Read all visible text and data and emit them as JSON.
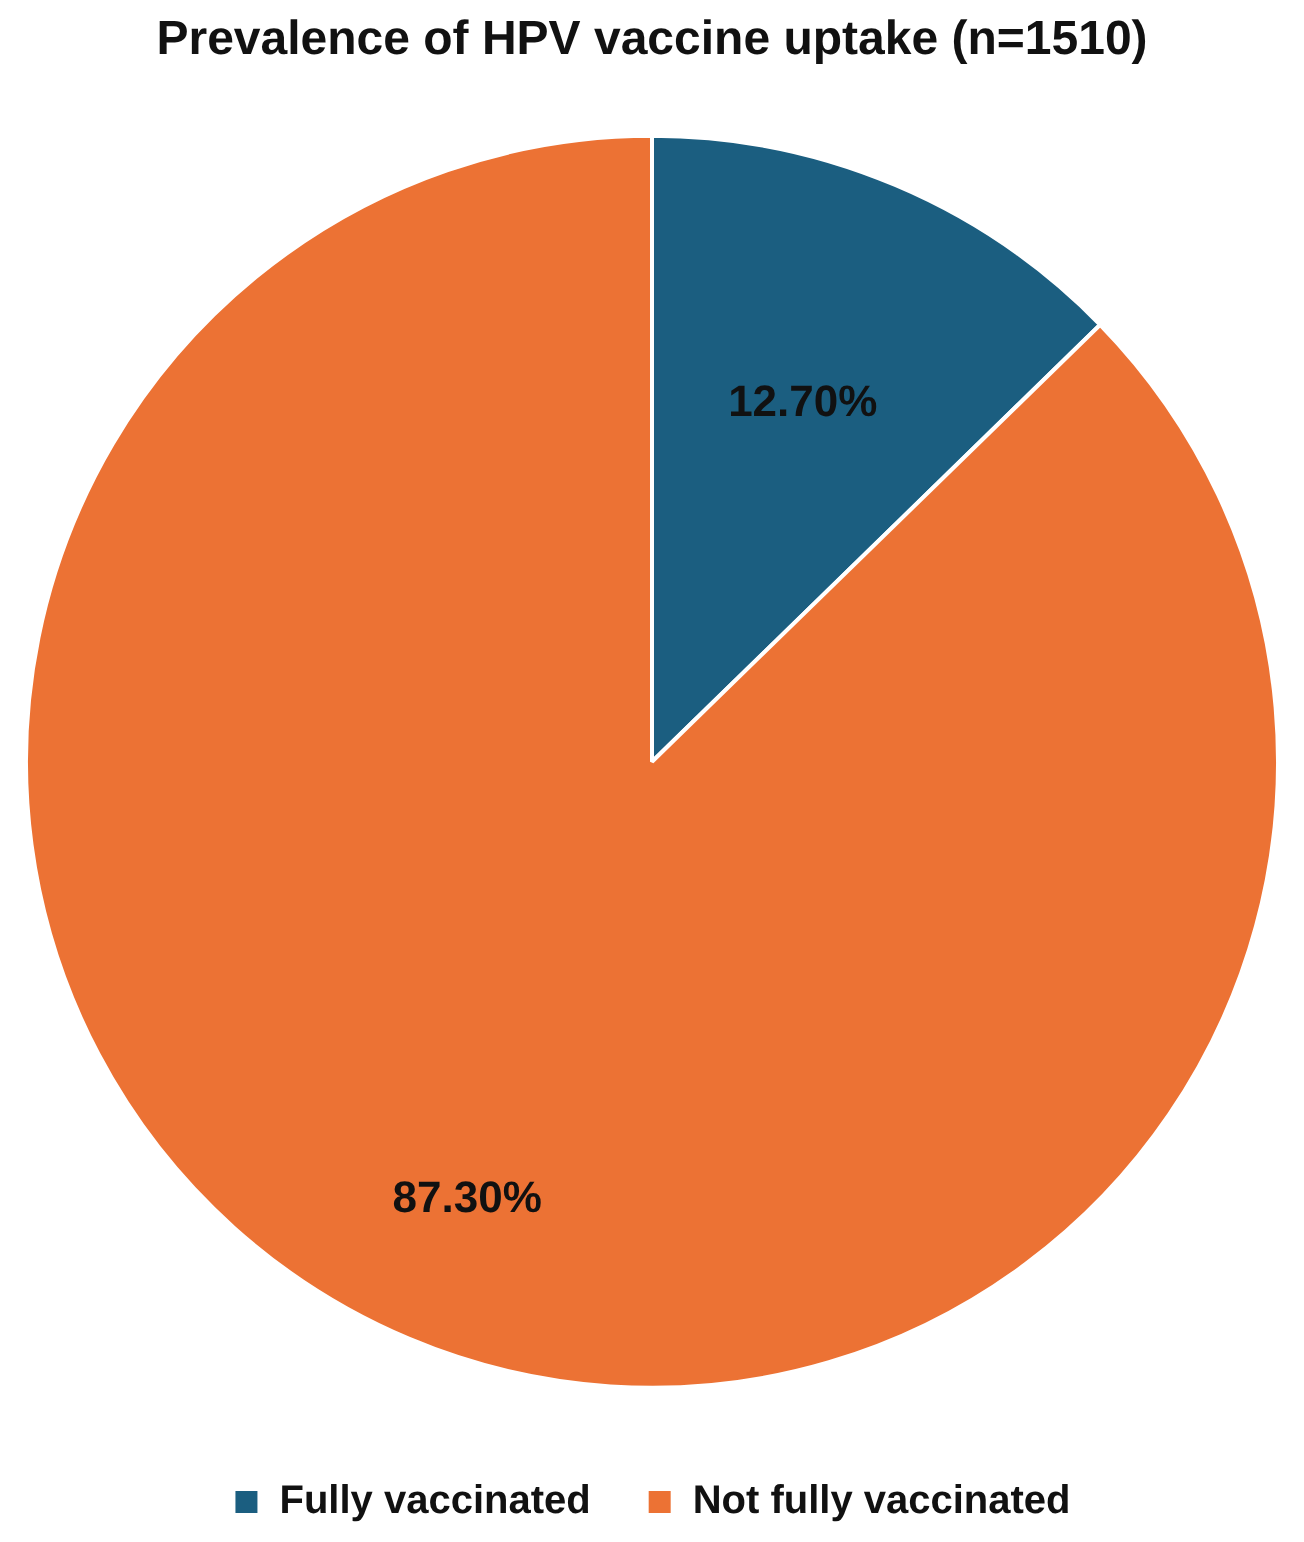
{
  "chart_data": {
    "type": "pie",
    "title": "Prevalence of HPV vaccine uptake (n=1510)",
    "categories": [
      "Fully vaccinated",
      "Not fully vaccinated"
    ],
    "values": [
      12.7,
      87.3
    ],
    "colors": [
      "#1b5e80",
      "#ec7234"
    ],
    "value_labels": [
      "12.70%",
      "87.30%"
    ],
    "legend": "bottom"
  }
}
